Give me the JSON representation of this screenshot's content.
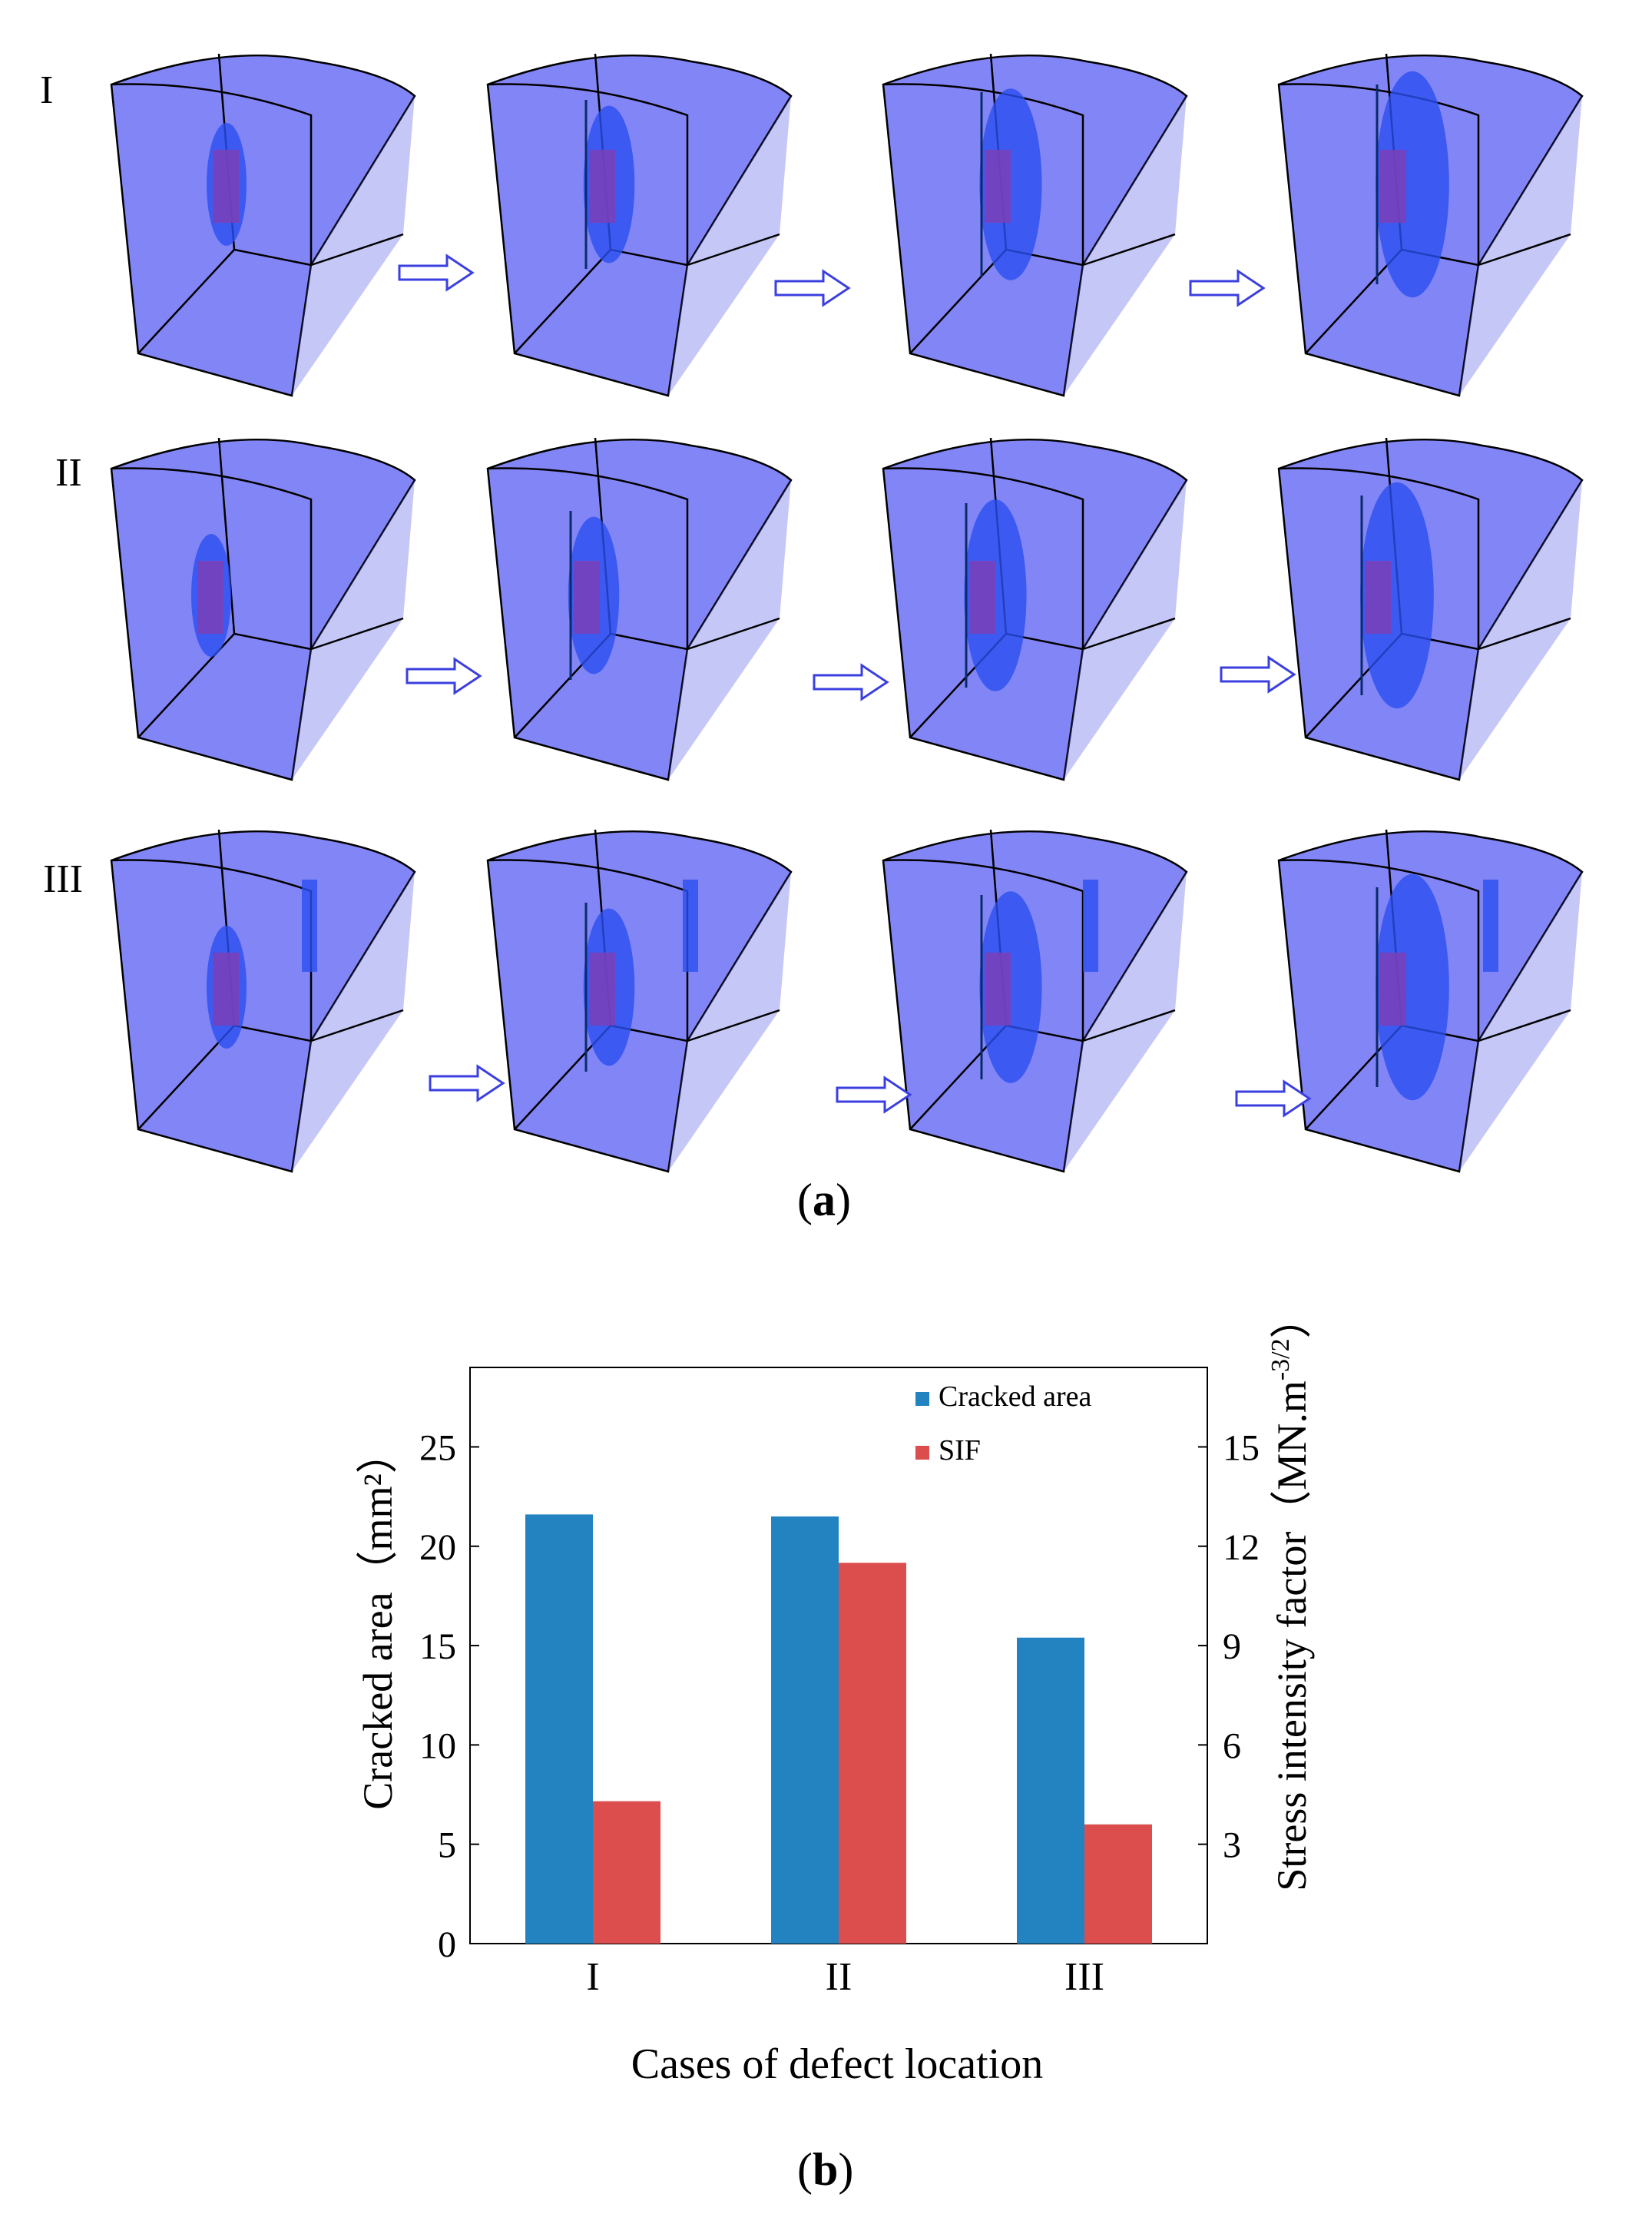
{
  "panel_a": {
    "row_labels": [
      "I",
      "II",
      "III"
    ],
    "panel_label": {
      "open": "(",
      "letter": "a",
      "close": ")"
    }
  },
  "panel_b": {
    "panel_label": {
      "open": "(",
      "letter": "b",
      "close": ")"
    }
  },
  "chart_data": {
    "type": "bar",
    "categories": [
      "I",
      "II",
      "III"
    ],
    "series": [
      {
        "name": "Cracked area",
        "axis": "left",
        "values": [
          21.6,
          21.5,
          15.4
        ],
        "color": "#2383c0"
      },
      {
        "name": "SIF",
        "axis": "right",
        "values": [
          4.3,
          11.5,
          3.6
        ],
        "color": "#dc4e4e"
      }
    ],
    "xlabel": "Cases of defect location",
    "ylabel_left": "Cracked area（mm²）",
    "ylabel_right_main": "Stress intensity factor（MN.m",
    "ylabel_right_sup": "-3/2",
    "ylabel_right_close": "）",
    "ylim_left": [
      0,
      29
    ],
    "ylim_right": [
      0,
      17.4
    ],
    "yticks_left": [
      0,
      5,
      10,
      15,
      20,
      25
    ],
    "yticks_right": [
      3,
      6,
      9,
      12,
      15
    ],
    "legend_position": "top-right"
  },
  "colors": {
    "block_fill": "#7b7ef6",
    "block_dark": "#5a5ee8",
    "crack_blue": "#2b4ff0",
    "crack_purple": "#7a3fb8",
    "arrow_stroke": "#3b3fe0"
  }
}
